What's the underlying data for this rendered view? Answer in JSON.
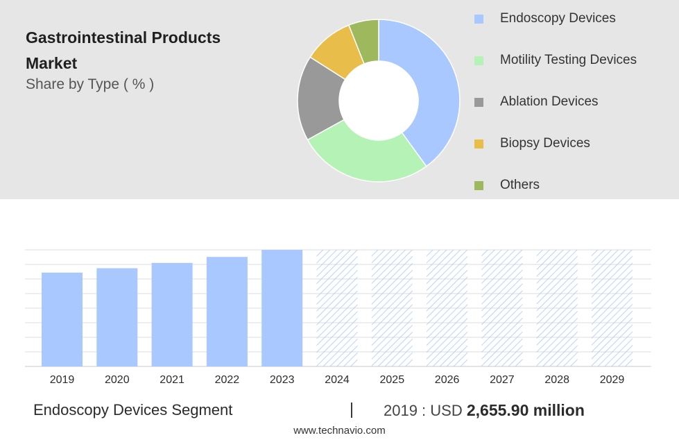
{
  "header": {
    "title": "Gastrointestinal Products Market",
    "subtitle": "Share by Type ( % )"
  },
  "chart_data": [
    {
      "type": "pie",
      "variant": "donut",
      "title": "Gastrointestinal Products Market",
      "subtitle": "Share by Type ( % )",
      "legend_position": "right",
      "slices": [
        {
          "label": "Endoscopy Devices",
          "value": 40,
          "color": "#a8c8ff"
        },
        {
          "label": "Motility Testing Devices",
          "value": 27,
          "color": "#b5f2b5"
        },
        {
          "label": "Ablation Devices",
          "value": 17,
          "color": "#999999"
        },
        {
          "label": "Biopsy Devices",
          "value": 10,
          "color": "#e8bd4a"
        },
        {
          "label": "Others",
          "value": 6,
          "color": "#9eb85e"
        }
      ]
    },
    {
      "type": "bar",
      "categories": [
        "2019",
        "2020",
        "2021",
        "2022",
        "2023",
        "2024",
        "2025",
        "2026",
        "2027",
        "2028",
        "2029"
      ],
      "values": [
        2655.9,
        2780,
        2930,
        3100,
        3300,
        null,
        null,
        null,
        null,
        null,
        null
      ],
      "forecast_from": "2024",
      "bar_color": "#a8c8ff",
      "grid": true,
      "ylim": [
        0,
        3300
      ]
    }
  ],
  "footer": {
    "segment": "Endoscopy Devices Segment",
    "separator": "|",
    "year_label": "2019 : USD",
    "value": "2,655.90 million",
    "source": "www.technavio.com"
  }
}
